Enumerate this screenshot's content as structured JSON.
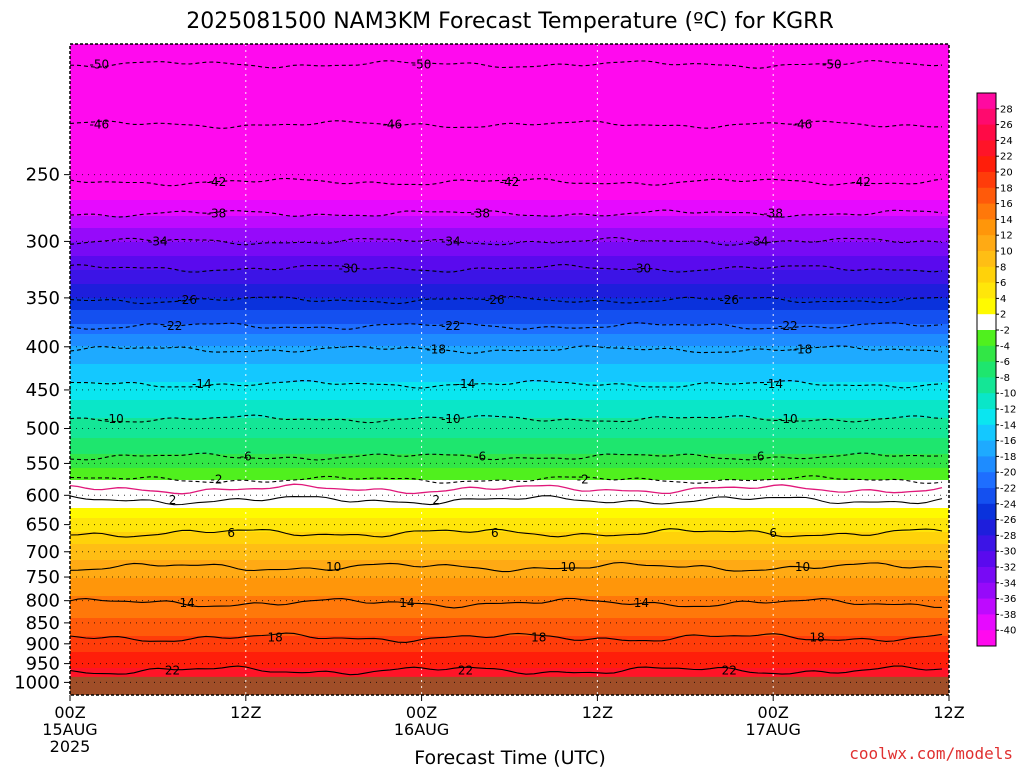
{
  "chart_data": {
    "type": "heatmap",
    "title": "2025081500 NAM3KM Forecast Temperature (ºC) for KGRR",
    "xlabel": "Forecast Time (UTC)",
    "ylabel": "",
    "y_scale": "log",
    "y_inverted": true,
    "ylim": [
      1035,
      175
    ],
    "y_ticks": [
      250,
      300,
      350,
      400,
      450,
      500,
      550,
      600,
      650,
      700,
      750,
      800,
      850,
      900,
      950,
      1000
    ],
    "x_range_hours": [
      0,
      60
    ],
    "x_ticks": [
      {
        "hour": 0,
        "lines": [
          "00Z",
          "15AUG",
          "2025"
        ]
      },
      {
        "hour": 12,
        "lines": [
          "12Z"
        ]
      },
      {
        "hour": 24,
        "lines": [
          "00Z",
          "16AUG"
        ]
      },
      {
        "hour": 36,
        "lines": [
          "12Z"
        ]
      },
      {
        "hour": 48,
        "lines": [
          "00Z",
          "17AUG"
        ]
      },
      {
        "hour": 60,
        "lines": [
          "12Z"
        ]
      }
    ],
    "grid": true,
    "surface_pressure_mb": 985,
    "temperature_profile": [
      {
        "p": 175,
        "t": -58
      },
      {
        "p": 200,
        "t": -52
      },
      {
        "p": 230,
        "t": -47
      },
      {
        "p": 250,
        "t": -43
      },
      {
        "p": 280,
        "t": -38
      },
      {
        "p": 300,
        "t": -34
      },
      {
        "p": 330,
        "t": -29
      },
      {
        "p": 350,
        "t": -26
      },
      {
        "p": 375,
        "t": -22
      },
      {
        "p": 400,
        "t": -18
      },
      {
        "p": 450,
        "t": -13
      },
      {
        "p": 500,
        "t": -9
      },
      {
        "p": 550,
        "t": -5
      },
      {
        "p": 575,
        "t": -2
      },
      {
        "p": 590,
        "t": 0
      },
      {
        "p": 620,
        "t": 2
      },
      {
        "p": 650,
        "t": 5
      },
      {
        "p": 700,
        "t": 9
      },
      {
        "p": 750,
        "t": 12
      },
      {
        "p": 800,
        "t": 14.5
      },
      {
        "p": 850,
        "t": 16.5
      },
      {
        "p": 900,
        "t": 19
      },
      {
        "p": 950,
        "t": 21.5
      },
      {
        "p": 985,
        "t": 23
      }
    ],
    "contours_dashed": [
      {
        "value": -50,
        "label": "-50",
        "p": 185,
        "label_hours": [
          2,
          24,
          52
        ]
      },
      {
        "value": -46,
        "label": "-46",
        "p": 218,
        "label_hours": [
          2,
          22,
          50
        ]
      },
      {
        "value": -42,
        "label": "-42",
        "p": 255,
        "label_hours": [
          10,
          30,
          54
        ]
      },
      {
        "value": -38,
        "label": "-38",
        "p": 278,
        "label_hours": [
          10,
          28,
          48
        ]
      },
      {
        "value": -34,
        "label": "-34",
        "p": 300,
        "label_hours": [
          6,
          26,
          47
        ]
      },
      {
        "value": -30,
        "label": "-30",
        "p": 323,
        "label_hours": [
          19,
          39
        ]
      },
      {
        "value": -26,
        "label": "-26",
        "p": 352,
        "label_hours": [
          8,
          29,
          45
        ]
      },
      {
        "value": -22,
        "label": "-22",
        "p": 378,
        "label_hours": [
          7,
          26,
          49
        ]
      },
      {
        "value": -18,
        "label": "-18",
        "p": 403,
        "label_hours": [
          25,
          50
        ]
      },
      {
        "value": -14,
        "label": "-14",
        "p": 443,
        "label_hours": [
          9,
          27,
          48
        ]
      },
      {
        "value": -10,
        "label": "-10",
        "p": 487,
        "label_hours": [
          3,
          26,
          49
        ]
      },
      {
        "value": -6,
        "label": "-6",
        "p": 540,
        "label_hours": [
          12,
          28,
          47
        ]
      },
      {
        "value": -2,
        "label": "-2",
        "p": 575,
        "label_hours": [
          10,
          35
        ]
      }
    ],
    "contour_zero": {
      "value": 0,
      "p": 590
    },
    "contours_solid": [
      {
        "value": 2,
        "label": "2",
        "p": 608,
        "label_hours": [
          7,
          25
        ]
      },
      {
        "value": 6,
        "label": "6",
        "p": 665,
        "label_hours": [
          11,
          29,
          48
        ]
      },
      {
        "value": 10,
        "label": "10",
        "p": 730,
        "label_hours": [
          18,
          34,
          50
        ]
      },
      {
        "value": 14,
        "label": "14",
        "p": 805,
        "label_hours": [
          8,
          23,
          39
        ]
      },
      {
        "value": 18,
        "label": "18",
        "p": 885,
        "label_hours": [
          14,
          32,
          51
        ]
      },
      {
        "value": 22,
        "label": "22",
        "p": 968,
        "label_hours": [
          7,
          27,
          45
        ]
      }
    ],
    "colorbar": {
      "labels": [
        "28",
        "26",
        "24",
        "22",
        "20",
        "18",
        "16",
        "14",
        "12",
        "10",
        "8",
        "6",
        "4",
        "2",
        "-2",
        "-4",
        "-6",
        "-8",
        "-10",
        "-12",
        "-14",
        "-16",
        "-18",
        "-20",
        "-22",
        "-24",
        "-26",
        "-28",
        "-30",
        "-32",
        "-34",
        "-36",
        "-38",
        "-40"
      ],
      "bins": [
        {
          "min": 28,
          "color": "#ff0aa0"
        },
        {
          "min": 26,
          "color": "#ff0a6e"
        },
        {
          "min": 24,
          "color": "#ff0a46"
        },
        {
          "min": 22,
          "color": "#ff1428"
        },
        {
          "min": 20,
          "color": "#ff1e0a"
        },
        {
          "min": 18,
          "color": "#ff3c0a"
        },
        {
          "min": 16,
          "color": "#ff5a0a"
        },
        {
          "min": 14,
          "color": "#ff780a"
        },
        {
          "min": 12,
          "color": "#ff960a"
        },
        {
          "min": 10,
          "color": "#ffaa14"
        },
        {
          "min": 8,
          "color": "#ffbe14"
        },
        {
          "min": 6,
          "color": "#ffd20a"
        },
        {
          "min": 4,
          "color": "#ffe60a"
        },
        {
          "min": 2,
          "color": "#fffa00"
        },
        {
          "min": -2,
          "color": "#ffffff"
        },
        {
          "min": -4,
          "color": "#50f01e"
        },
        {
          "min": -6,
          "color": "#32e646"
        },
        {
          "min": -8,
          "color": "#1ee66e"
        },
        {
          "min": -10,
          "color": "#14e696"
        },
        {
          "min": -12,
          "color": "#0ae6c8"
        },
        {
          "min": -14,
          "color": "#0ae6f0"
        },
        {
          "min": -16,
          "color": "#14c8ff"
        },
        {
          "min": -18,
          "color": "#1eaaff"
        },
        {
          "min": -20,
          "color": "#1e8cff"
        },
        {
          "min": -22,
          "color": "#1e6eff"
        },
        {
          "min": -24,
          "color": "#1450f0"
        },
        {
          "min": -26,
          "color": "#0a32dc"
        },
        {
          "min": -28,
          "color": "#1e1edc"
        },
        {
          "min": -30,
          "color": "#3c14e6"
        },
        {
          "min": -32,
          "color": "#5a0aee"
        },
        {
          "min": -34,
          "color": "#780af5"
        },
        {
          "min": -36,
          "color": "#960afa"
        },
        {
          "min": -38,
          "color": "#be0aff"
        },
        {
          "min": -40,
          "color": "#e60aff"
        },
        {
          "min": -999,
          "color": "#ff0aee"
        }
      ]
    },
    "ground_color": "#a04e28",
    "zero_line_color": "#e0187a",
    "watermark": "coolwx.com/models"
  }
}
